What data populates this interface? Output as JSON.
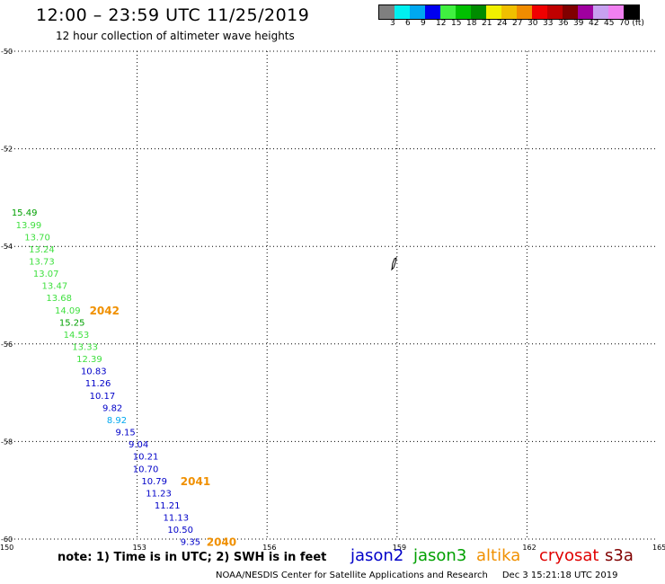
{
  "header": {
    "title": "12:00 – 23:59 UTC 11/25/2019",
    "subtitle": "12 hour collection of altimeter wave heights"
  },
  "colorbar": {
    "colors": [
      "#7f7f7f",
      "#00f0f0",
      "#00a8f0",
      "#0000f0",
      "#40f040",
      "#00c000",
      "#008c00",
      "#f0f000",
      "#f0c000",
      "#f08c00",
      "#f00000",
      "#c00000",
      "#800000",
      "#a000a0",
      "#c8a0f0",
      "#f080f0",
      "#000000"
    ],
    "labels": [
      "3",
      "6",
      "9",
      "12",
      "15",
      "18",
      "21",
      "24",
      "27",
      "30",
      "33",
      "36",
      "39",
      "42",
      "45",
      "70 (ft)"
    ]
  },
  "map": {
    "x_ticks": [
      "150",
      "153",
      "156",
      "159",
      "162",
      "165"
    ],
    "y_ticks": [
      "-50",
      "-52",
      "-54",
      "-56",
      "-58",
      "-60"
    ],
    "lon_range": [
      150,
      165
    ],
    "lat_range": [
      -50,
      -60
    ],
    "measurements": [
      {
        "lon": 150.1,
        "lat": -53.3,
        "value": "15.49",
        "color": "#00a000"
      },
      {
        "lon": 150.2,
        "lat": -53.55,
        "value": "13.99",
        "color": "#40e040"
      },
      {
        "lon": 150.4,
        "lat": -53.8,
        "value": "13.70",
        "color": "#40e040"
      },
      {
        "lon": 150.5,
        "lat": -54.05,
        "value": "13.24",
        "color": "#40e040"
      },
      {
        "lon": 150.5,
        "lat": -54.3,
        "value": "13.73",
        "color": "#40e040"
      },
      {
        "lon": 150.6,
        "lat": -54.55,
        "value": "13.07",
        "color": "#40e040"
      },
      {
        "lon": 150.8,
        "lat": -54.8,
        "value": "13.47",
        "color": "#40e040"
      },
      {
        "lon": 150.9,
        "lat": -55.05,
        "value": "13.68",
        "color": "#40e040"
      },
      {
        "lon": 151.1,
        "lat": -55.3,
        "value": "14.09",
        "color": "#40e040"
      },
      {
        "lon": 151.2,
        "lat": -55.55,
        "value": "15.25",
        "color": "#00a000"
      },
      {
        "lon": 151.3,
        "lat": -55.8,
        "value": "14.53",
        "color": "#40e040"
      },
      {
        "lon": 151.5,
        "lat": -56.05,
        "value": "13.33",
        "color": "#40e040"
      },
      {
        "lon": 151.6,
        "lat": -56.3,
        "value": "12.39",
        "color": "#40e040"
      },
      {
        "lon": 151.7,
        "lat": -56.55,
        "value": "10.83",
        "color": "#0000c8"
      },
      {
        "lon": 151.8,
        "lat": -56.8,
        "value": "11.26",
        "color": "#0000c8"
      },
      {
        "lon": 151.9,
        "lat": -57.05,
        "value": "10.17",
        "color": "#0000c8"
      },
      {
        "lon": 152.2,
        "lat": -57.3,
        "value": "9.82",
        "color": "#0000c8"
      },
      {
        "lon": 152.3,
        "lat": -57.55,
        "value": "8.92",
        "color": "#00a8f0"
      },
      {
        "lon": 152.5,
        "lat": -57.8,
        "value": "9.15",
        "color": "#0000c8"
      },
      {
        "lon": 152.8,
        "lat": -58.05,
        "value": "9.04",
        "color": "#0000c8"
      },
      {
        "lon": 152.9,
        "lat": -58.3,
        "value": "10.21",
        "color": "#0000c8"
      },
      {
        "lon": 152.9,
        "lat": -58.55,
        "value": "10.70",
        "color": "#0000c8"
      },
      {
        "lon": 153.1,
        "lat": -58.8,
        "value": "10.79",
        "color": "#0000c8"
      },
      {
        "lon": 153.2,
        "lat": -59.05,
        "value": "11.23",
        "color": "#0000c8"
      },
      {
        "lon": 153.4,
        "lat": -59.3,
        "value": "11.21",
        "color": "#0000c8"
      },
      {
        "lon": 153.6,
        "lat": -59.55,
        "value": "11.13",
        "color": "#0000c8"
      },
      {
        "lon": 153.7,
        "lat": -59.8,
        "value": "10.50",
        "color": "#0000c8"
      },
      {
        "lon": 154.0,
        "lat": -60.05,
        "value": "9.35",
        "color": "#0000c8"
      }
    ],
    "time_labels": [
      {
        "lon": 151.9,
        "lat": -55.3,
        "value": "2042",
        "color": "#f09000"
      },
      {
        "lon": 154.0,
        "lat": -58.8,
        "value": "2041",
        "color": "#f09000"
      },
      {
        "lon": 154.6,
        "lat": -60.05,
        "value": "2040",
        "color": "#f09000"
      }
    ]
  },
  "footer": {
    "note": "note: 1) Time is in UTC; 2) SWH is in feet",
    "legend": [
      {
        "name": "jason2",
        "color": "#0000c8"
      },
      {
        "name": "jason3",
        "color": "#00a000"
      },
      {
        "name": "altika",
        "color": "#f09000"
      },
      {
        "name": "cryosat",
        "color": "#e00000"
      },
      {
        "name": "s3a",
        "color": "#800000"
      }
    ],
    "credit": "NOAA/NESDIS Center for Satellite Applications and Research",
    "timestamp": "Dec  3 15:21:18 UTC 2019"
  }
}
